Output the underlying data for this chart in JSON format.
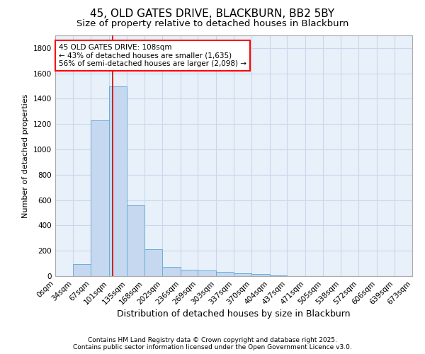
{
  "title": "45, OLD GATES DRIVE, BLACKBURN, BB2 5BY",
  "subtitle": "Size of property relative to detached houses in Blackburn",
  "xlabel": "Distribution of detached houses by size in Blackburn",
  "ylabel": "Number of detached properties",
  "bar_color": "#c5d8f0",
  "bar_edge_color": "#6baed6",
  "grid_color": "#c8d8ec",
  "plot_bg_color": "#e8f0fa",
  "fig_bg_color": "#ffffff",
  "red_line_x": 108,
  "red_line_color": "#cc0000",
  "annotation_text": "45 OLD GATES DRIVE: 108sqm\n← 43% of detached houses are smaller (1,635)\n56% of semi-detached houses are larger (2,098) →",
  "annotation_fontsize": 7.5,
  "bin_edges": [
    0,
    34,
    67,
    101,
    135,
    168,
    202,
    236,
    269,
    303,
    337,
    370,
    404,
    437,
    471,
    505,
    538,
    572,
    606,
    639,
    673
  ],
  "bar_heights": [
    0,
    95,
    1230,
    1500,
    560,
    215,
    70,
    50,
    45,
    35,
    25,
    15,
    5,
    0,
    0,
    0,
    0,
    0,
    0,
    0
  ],
  "ylim": [
    0,
    1900
  ],
  "yticks": [
    0,
    200,
    400,
    600,
    800,
    1000,
    1200,
    1400,
    1600,
    1800
  ],
  "xtick_labels": [
    "0sqm",
    "34sqm",
    "67sqm",
    "101sqm",
    "135sqm",
    "168sqm",
    "202sqm",
    "236sqm",
    "269sqm",
    "303sqm",
    "337sqm",
    "370sqm",
    "404sqm",
    "437sqm",
    "471sqm",
    "505sqm",
    "538sqm",
    "572sqm",
    "606sqm",
    "639sqm",
    "673sqm"
  ],
  "title_fontsize": 11,
  "subtitle_fontsize": 9.5,
  "xlabel_fontsize": 9,
  "ylabel_fontsize": 8,
  "tick_fontsize": 7.5,
  "footer_text": "Contains HM Land Registry data © Crown copyright and database right 2025.\nContains public sector information licensed under the Open Government Licence v3.0.",
  "footer_fontsize": 6.5
}
